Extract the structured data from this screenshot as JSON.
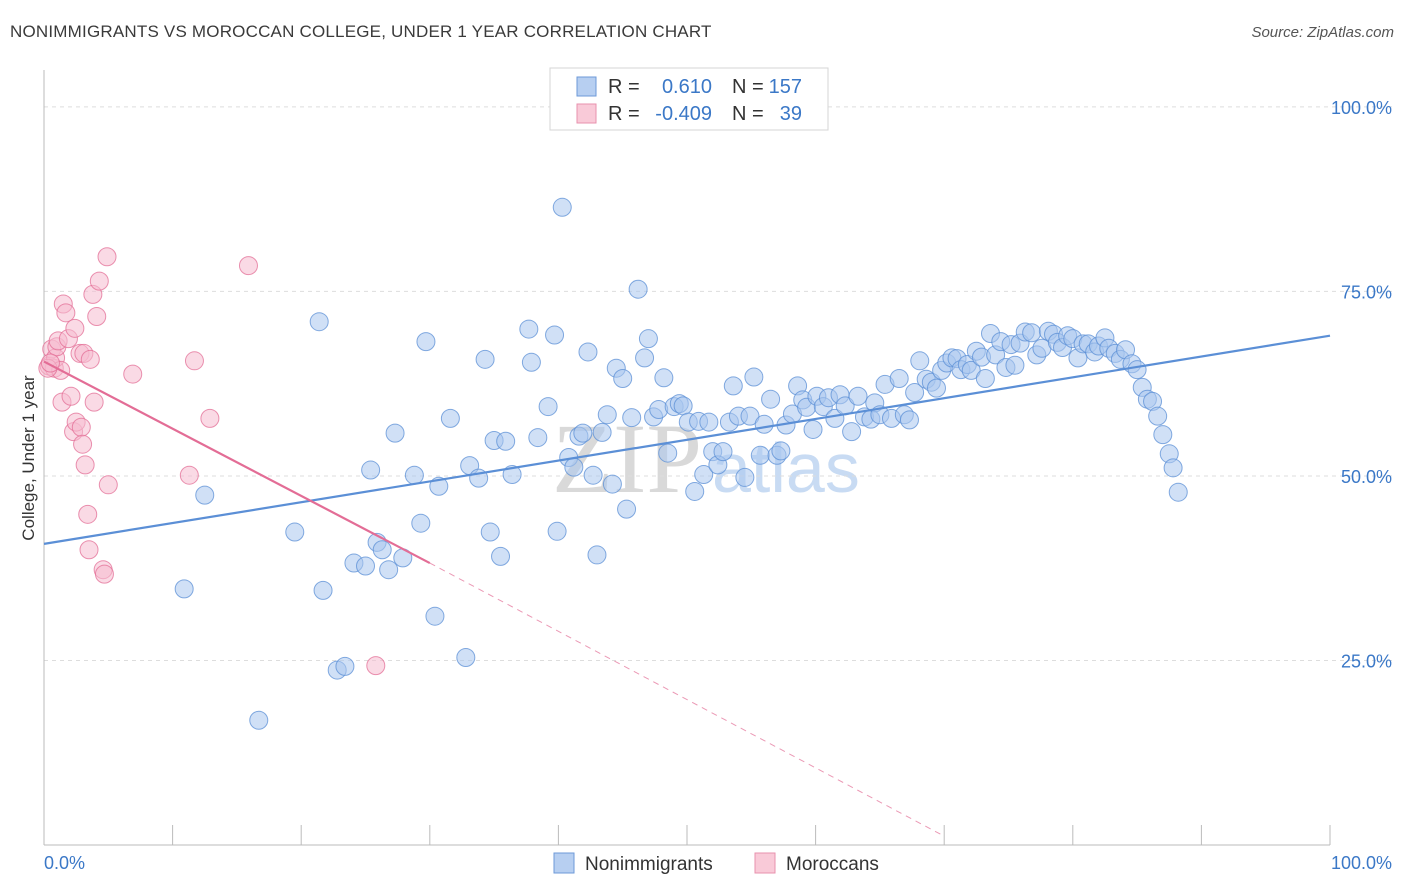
{
  "title": "NONIMMIGRANTS VS MOROCCAN COLLEGE, UNDER 1 YEAR CORRELATION CHART",
  "source": "Source: ZipAtlas.com",
  "watermark": {
    "zip": "ZIP",
    "atlas": "atlas"
  },
  "legend": {
    "r_label": "R =",
    "n_label": "N =",
    "rows": [
      {
        "name": "Nonimmigrants",
        "r": "0.610",
        "n": "157",
        "color": "#8fb6e8"
      },
      {
        "name": "Moroccans",
        "r": "-0.409",
        "n": "39",
        "color": "#f2a9bf"
      }
    ]
  },
  "chart_data": {
    "type": "scatter",
    "title": "NONIMMIGRANTS VS MOROCCAN COLLEGE, UNDER 1 YEAR CORRELATION CHART",
    "xlabel": "",
    "ylabel": "College, Under 1 year",
    "xlim": [
      0,
      100
    ],
    "ylim": [
      0,
      105
    ],
    "x_tick_labels": [
      "0.0%",
      "100.0%"
    ],
    "y_tick_labels": [
      "25.0%",
      "50.0%",
      "75.0%",
      "100.0%"
    ],
    "y_ticks": [
      25,
      50,
      75,
      100
    ],
    "grid": true,
    "legend_position": "top-center",
    "series": [
      {
        "name": "Nonimmigrants",
        "color": "#5b8fd6",
        "fill": "#a9c6ee",
        "trend": {
          "x0": 0,
          "y0": 40.8,
          "x1": 100,
          "y1": 69.0
        },
        "points": [
          [
            10.9,
            34.7
          ],
          [
            12.5,
            47.4
          ],
          [
            16.7,
            16.9
          ],
          [
            19.5,
            42.4
          ],
          [
            21.4,
            70.9
          ],
          [
            21.7,
            34.5
          ],
          [
            22.8,
            23.7
          ],
          [
            23.4,
            24.2
          ],
          [
            24.1,
            38.2
          ],
          [
            25.0,
            37.8
          ],
          [
            25.4,
            50.8
          ],
          [
            25.9,
            41.0
          ],
          [
            26.3,
            40.0
          ],
          [
            26.8,
            37.3
          ],
          [
            27.3,
            55.8
          ],
          [
            27.9,
            38.9
          ],
          [
            28.8,
            50.1
          ],
          [
            29.3,
            43.6
          ],
          [
            29.7,
            68.2
          ],
          [
            30.4,
            31.0
          ],
          [
            30.7,
            48.6
          ],
          [
            31.6,
            57.8
          ],
          [
            32.8,
            25.4
          ],
          [
            33.1,
            51.4
          ],
          [
            33.8,
            49.7
          ],
          [
            34.3,
            65.8
          ],
          [
            34.7,
            42.4
          ],
          [
            35.0,
            54.8
          ],
          [
            35.5,
            39.1
          ],
          [
            35.9,
            54.7
          ],
          [
            36.4,
            50.2
          ],
          [
            37.7,
            69.9
          ],
          [
            37.9,
            65.4
          ],
          [
            38.4,
            55.2
          ],
          [
            39.2,
            59.4
          ],
          [
            39.7,
            69.1
          ],
          [
            39.9,
            42.5
          ],
          [
            40.3,
            86.4
          ],
          [
            40.8,
            52.5
          ],
          [
            41.2,
            51.2
          ],
          [
            41.6,
            55.4
          ],
          [
            41.9,
            55.8
          ],
          [
            42.3,
            66.8
          ],
          [
            42.7,
            50.1
          ],
          [
            43.0,
            39.3
          ],
          [
            43.4,
            55.9
          ],
          [
            43.8,
            58.3
          ],
          [
            44.2,
            48.9
          ],
          [
            44.5,
            64.6
          ],
          [
            45.0,
            63.2
          ],
          [
            45.3,
            45.5
          ],
          [
            45.7,
            57.9
          ],
          [
            46.2,
            75.3
          ],
          [
            46.7,
            66.0
          ],
          [
            47.0,
            68.6
          ],
          [
            47.4,
            58.0
          ],
          [
            47.8,
            59.0
          ],
          [
            48.2,
            63.3
          ],
          [
            48.5,
            53.1
          ],
          [
            49.0,
            59.4
          ],
          [
            49.4,
            59.8
          ],
          [
            49.7,
            59.5
          ],
          [
            50.1,
            57.3
          ],
          [
            50.6,
            47.9
          ],
          [
            50.9,
            57.4
          ],
          [
            51.3,
            50.2
          ],
          [
            51.7,
            57.3
          ],
          [
            52.0,
            53.3
          ],
          [
            52.4,
            51.5
          ],
          [
            52.8,
            53.3
          ],
          [
            53.3,
            57.3
          ],
          [
            53.6,
            62.2
          ],
          [
            54.0,
            58.1
          ],
          [
            54.5,
            49.8
          ],
          [
            54.9,
            58.1
          ],
          [
            55.2,
            63.4
          ],
          [
            55.7,
            52.8
          ],
          [
            56.0,
            57.0
          ],
          [
            56.5,
            60.4
          ],
          [
            57.0,
            52.8
          ],
          [
            57.3,
            53.4
          ],
          [
            57.7,
            56.9
          ],
          [
            58.2,
            58.4
          ],
          [
            58.6,
            62.2
          ],
          [
            59.0,
            60.3
          ],
          [
            59.3,
            59.3
          ],
          [
            59.8,
            56.3
          ],
          [
            60.1,
            60.8
          ],
          [
            60.6,
            59.4
          ],
          [
            61.0,
            60.6
          ],
          [
            61.5,
            57.8
          ],
          [
            61.9,
            61.0
          ],
          [
            62.3,
            59.5
          ],
          [
            62.8,
            56.0
          ],
          [
            63.3,
            60.8
          ],
          [
            63.8,
            58.0
          ],
          [
            64.3,
            57.7
          ],
          [
            64.6,
            59.9
          ],
          [
            65.0,
            58.3
          ],
          [
            65.4,
            62.4
          ],
          [
            65.9,
            57.8
          ],
          [
            66.5,
            63.2
          ],
          [
            66.9,
            58.3
          ],
          [
            67.3,
            57.6
          ],
          [
            67.7,
            61.3
          ],
          [
            68.1,
            65.6
          ],
          [
            68.6,
            63.1
          ],
          [
            69.0,
            62.7
          ],
          [
            69.4,
            61.9
          ],
          [
            69.8,
            64.3
          ],
          [
            70.2,
            65.3
          ],
          [
            70.6,
            66.0
          ],
          [
            71.0,
            65.9
          ],
          [
            71.3,
            64.4
          ],
          [
            71.8,
            65.1
          ],
          [
            72.1,
            64.3
          ],
          [
            72.5,
            66.9
          ],
          [
            72.9,
            66.1
          ],
          [
            73.2,
            63.2
          ],
          [
            73.6,
            69.3
          ],
          [
            74.0,
            66.4
          ],
          [
            74.4,
            68.2
          ],
          [
            74.8,
            64.7
          ],
          [
            75.2,
            67.8
          ],
          [
            75.5,
            65.0
          ],
          [
            75.9,
            68.0
          ],
          [
            76.3,
            69.5
          ],
          [
            76.8,
            69.4
          ],
          [
            77.2,
            66.4
          ],
          [
            77.6,
            67.3
          ],
          [
            78.1,
            69.6
          ],
          [
            78.5,
            69.2
          ],
          [
            78.8,
            68.1
          ],
          [
            79.2,
            67.4
          ],
          [
            79.6,
            69.0
          ],
          [
            80.0,
            68.6
          ],
          [
            80.4,
            66.0
          ],
          [
            80.8,
            67.9
          ],
          [
            81.2,
            67.9
          ],
          [
            81.7,
            66.8
          ],
          [
            82.0,
            67.6
          ],
          [
            82.5,
            68.7
          ],
          [
            82.8,
            67.3
          ],
          [
            83.3,
            66.6
          ],
          [
            83.7,
            65.8
          ],
          [
            84.1,
            67.1
          ],
          [
            84.6,
            65.2
          ],
          [
            85.0,
            64.4
          ],
          [
            85.4,
            62.0
          ],
          [
            85.8,
            60.4
          ],
          [
            86.2,
            60.1
          ],
          [
            86.6,
            58.1
          ],
          [
            87.0,
            55.6
          ],
          [
            87.5,
            53.0
          ],
          [
            87.8,
            51.1
          ],
          [
            88.2,
            47.8
          ]
        ]
      },
      {
        "name": "Moroccans",
        "color": "#e36d96",
        "fill": "#f5bccf",
        "trend": {
          "x0": 0,
          "y0": 65.5,
          "x1": 30,
          "y1": 38.2
        },
        "trend_extension": {
          "x0": 30,
          "y0": 38.2,
          "x1": 70,
          "y1": 1.2
        },
        "points": [
          [
            0.4,
            64.9
          ],
          [
            0.6,
            67.2
          ],
          [
            0.8,
            64.6
          ],
          [
            0.9,
            66.0
          ],
          [
            1.0,
            67.5
          ],
          [
            1.1,
            68.3
          ],
          [
            1.3,
            64.3
          ],
          [
            1.4,
            60.0
          ],
          [
            1.5,
            73.3
          ],
          [
            1.7,
            72.1
          ],
          [
            1.9,
            68.6
          ],
          [
            2.1,
            60.8
          ],
          [
            2.3,
            56.0
          ],
          [
            2.4,
            70.0
          ],
          [
            2.5,
            57.3
          ],
          [
            2.8,
            66.6
          ],
          [
            2.9,
            56.6
          ],
          [
            3.0,
            54.3
          ],
          [
            3.1,
            66.6
          ],
          [
            3.2,
            51.5
          ],
          [
            3.4,
            44.8
          ],
          [
            3.5,
            40.0
          ],
          [
            3.6,
            65.8
          ],
          [
            3.8,
            74.6
          ],
          [
            3.9,
            60.0
          ],
          [
            4.1,
            71.6
          ],
          [
            4.3,
            76.4
          ],
          [
            4.6,
            37.3
          ],
          [
            4.7,
            36.7
          ],
          [
            4.9,
            79.7
          ],
          [
            5.0,
            48.8
          ],
          [
            6.9,
            63.8
          ],
          [
            11.3,
            50.1
          ],
          [
            11.7,
            65.6
          ],
          [
            12.9,
            57.8
          ],
          [
            15.9,
            78.5
          ],
          [
            25.8,
            24.3
          ],
          [
            0.3,
            64.6
          ],
          [
            0.5,
            65.3
          ]
        ]
      }
    ]
  }
}
